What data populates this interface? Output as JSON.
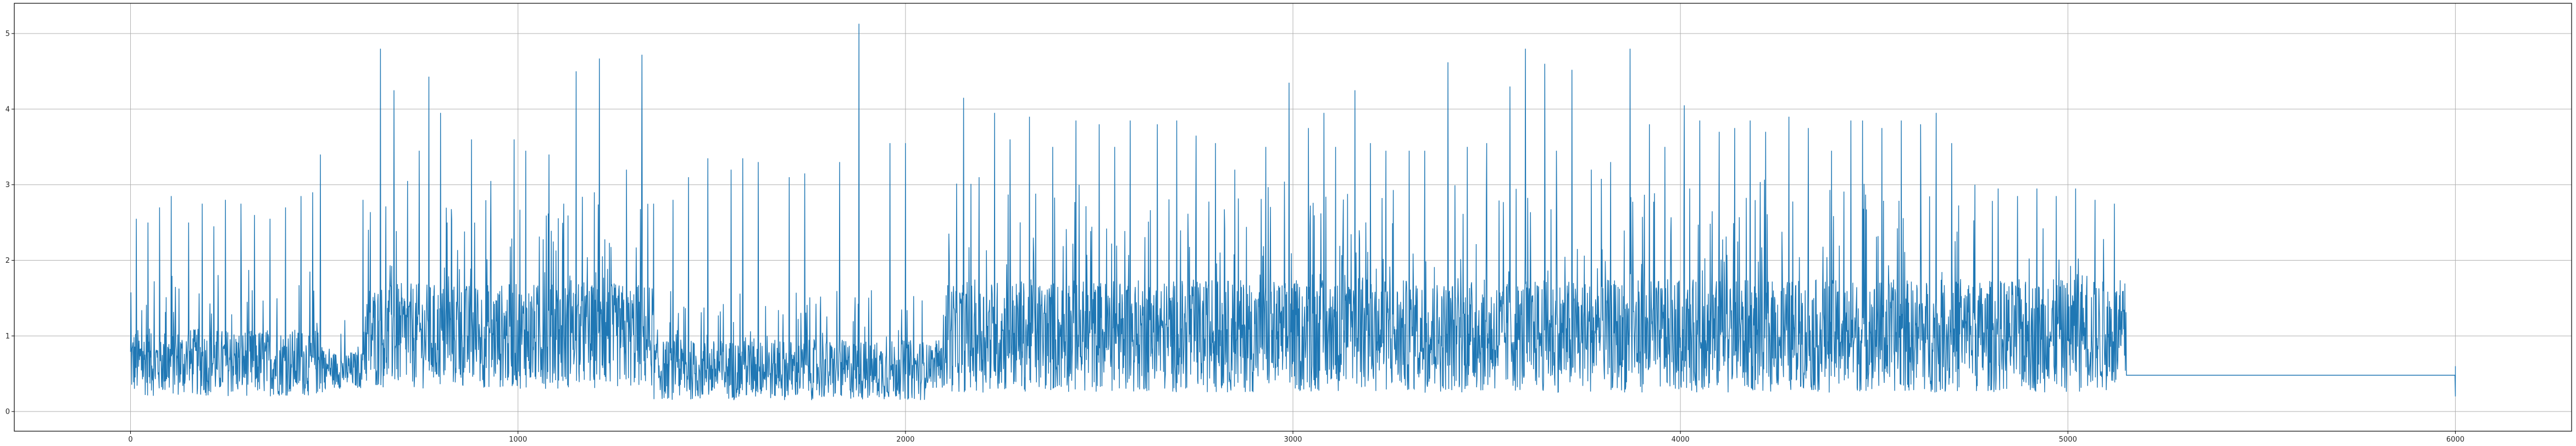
{
  "chart_data": {
    "type": "line",
    "title": "",
    "xlabel": "",
    "ylabel": "",
    "xlim": [
      -300,
      6300
    ],
    "ylim": [
      -0.26,
      5.4
    ],
    "grid": true,
    "legend": "none",
    "series_color": "#1f77b4",
    "x_ticks": [
      0,
      1000,
      2000,
      3000,
      4000,
      5000,
      6000
    ],
    "x_tick_labels": [
      "0",
      "1000",
      "2000",
      "3000",
      "4000",
      "5000",
      "6000"
    ],
    "y_ticks": [
      0,
      1,
      2,
      3,
      4,
      5
    ],
    "y_tick_labels": [
      "0",
      "1",
      "2",
      "3",
      "4",
      "5"
    ],
    "series": [
      {
        "x_start": 0,
        "x_end": 6000,
        "points": 6001,
        "segments": [
          {
            "from": 0,
            "to": 500,
            "base": 0.65,
            "spread": 0.9
          },
          {
            "from": 500,
            "to": 600,
            "base": 0.55,
            "spread": 0.5
          },
          {
            "from": 600,
            "to": 1350,
            "base": 1.0,
            "spread": 1.4
          },
          {
            "from": 1350,
            "to": 2050,
            "base": 0.55,
            "spread": 0.8
          },
          {
            "from": 2050,
            "to": 2100,
            "base": 0.6,
            "spread": 0.6
          },
          {
            "from": 2100,
            "to": 5150,
            "base": 1.0,
            "spread": 1.5
          },
          {
            "from": 5150,
            "to": 6000,
            "base": 0.48,
            "spread": 0.0
          }
        ],
        "spikes": [
          [
            15,
            2.55
          ],
          [
            45,
            2.5
          ],
          [
            75,
            2.7
          ],
          [
            105,
            2.85
          ],
          [
            150,
            2.5
          ],
          [
            185,
            2.75
          ],
          [
            215,
            2.45
          ],
          [
            245,
            2.8
          ],
          [
            285,
            2.75
          ],
          [
            320,
            2.6
          ],
          [
            360,
            2.55
          ],
          [
            400,
            2.7
          ],
          [
            440,
            2.85
          ],
          [
            470,
            2.9
          ],
          [
            490,
            3.4
          ],
          [
            600,
            2.8
          ],
          [
            645,
            4.8
          ],
          [
            680,
            4.25
          ],
          [
            715,
            3.05
          ],
          [
            745,
            3.45
          ],
          [
            770,
            4.43
          ],
          [
            800,
            3.95
          ],
          [
            880,
            3.6
          ],
          [
            930,
            3.05
          ],
          [
            990,
            3.6
          ],
          [
            1020,
            3.45
          ],
          [
            1080,
            3.4
          ],
          [
            1150,
            4.5
          ],
          [
            1210,
            4.67
          ],
          [
            1280,
            3.2
          ],
          [
            1320,
            4.72
          ],
          [
            1350,
            2.75
          ],
          [
            1400,
            2.8
          ],
          [
            1440,
            3.1
          ],
          [
            1490,
            3.35
          ],
          [
            1550,
            3.2
          ],
          [
            1580,
            3.35
          ],
          [
            1620,
            3.3
          ],
          [
            1700,
            3.1
          ],
          [
            1740,
            3.15
          ],
          [
            1830,
            3.3
          ],
          [
            1880,
            5.13
          ],
          [
            1960,
            3.55
          ],
          [
            2000,
            3.55
          ],
          [
            2150,
            4.15
          ],
          [
            2190,
            3.1
          ],
          [
            2230,
            3.95
          ],
          [
            2270,
            3.6
          ],
          [
            2320,
            3.9
          ],
          [
            2380,
            3.5
          ],
          [
            2440,
            3.85
          ],
          [
            2500,
            3.8
          ],
          [
            2540,
            3.5
          ],
          [
            2580,
            3.85
          ],
          [
            2650,
            3.8
          ],
          [
            2700,
            3.85
          ],
          [
            2750,
            3.65
          ],
          [
            2800,
            3.55
          ],
          [
            2850,
            3.2
          ],
          [
            2930,
            3.5
          ],
          [
            2990,
            4.35
          ],
          [
            3040,
            3.75
          ],
          [
            3080,
            3.95
          ],
          [
            3110,
            3.5
          ],
          [
            3160,
            4.25
          ],
          [
            3200,
            3.55
          ],
          [
            3240,
            3.45
          ],
          [
            3300,
            3.45
          ],
          [
            3340,
            3.45
          ],
          [
            3400,
            4.62
          ],
          [
            3450,
            3.5
          ],
          [
            3500,
            3.55
          ],
          [
            3560,
            4.3
          ],
          [
            3600,
            4.8
          ],
          [
            3650,
            4.6
          ],
          [
            3680,
            3.45
          ],
          [
            3720,
            4.52
          ],
          [
            3770,
            3.2
          ],
          [
            3820,
            3.3
          ],
          [
            3870,
            4.8
          ],
          [
            3920,
            3.8
          ],
          [
            3960,
            3.5
          ],
          [
            4010,
            4.05
          ],
          [
            4050,
            3.85
          ],
          [
            4100,
            3.7
          ],
          [
            4140,
            3.75
          ],
          [
            4180,
            3.85
          ],
          [
            4220,
            3.7
          ],
          [
            4280,
            3.9
          ],
          [
            4330,
            3.75
          ],
          [
            4390,
            3.45
          ],
          [
            4440,
            3.85
          ],
          [
            4470,
            3.85
          ],
          [
            4520,
            3.75
          ],
          [
            4570,
            3.85
          ],
          [
            4620,
            3.8
          ],
          [
            4660,
            3.95
          ],
          [
            4700,
            3.55
          ],
          [
            4760,
            3.0
          ],
          [
            4820,
            2.95
          ],
          [
            4870,
            2.85
          ],
          [
            4920,
            2.95
          ],
          [
            4970,
            2.85
          ],
          [
            5020,
            2.95
          ],
          [
            5070,
            2.8
          ],
          [
            5120,
            2.75
          ],
          [
            6000,
            0.6
          ]
        ]
      }
    ]
  }
}
